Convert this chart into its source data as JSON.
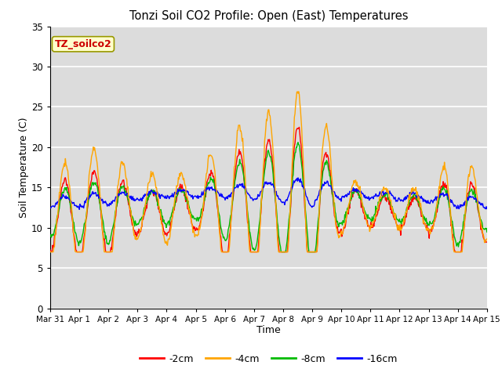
{
  "title": "Tonzi Soil CO2 Profile: Open (East) Temperatures",
  "xlabel": "Time",
  "ylabel": "Soil Temperature (C)",
  "ylim": [
    0,
    35
  ],
  "yticks": [
    0,
    5,
    10,
    15,
    20,
    25,
    30,
    35
  ],
  "plot_bg_color": "#dcdcdc",
  "colors": {
    "-2cm": "#ff0000",
    "-4cm": "#ffa500",
    "-8cm": "#00bb00",
    "-16cm": "#0000ff"
  },
  "annotation_text": "TZ_soilco2",
  "annotation_color": "#cc0000",
  "annotation_bg": "#ffffcc",
  "x_tick_labels": [
    "Mar 31",
    "Apr 1",
    "Apr 2",
    "Apr 3",
    "Apr 4",
    "Apr 5",
    "Apr 6",
    "Apr 7",
    "Apr 8",
    "Apr 9",
    "Apr 10",
    "Apr 11",
    "Apr 12",
    "Apr 13",
    "Apr 14",
    "Apr 15"
  ]
}
